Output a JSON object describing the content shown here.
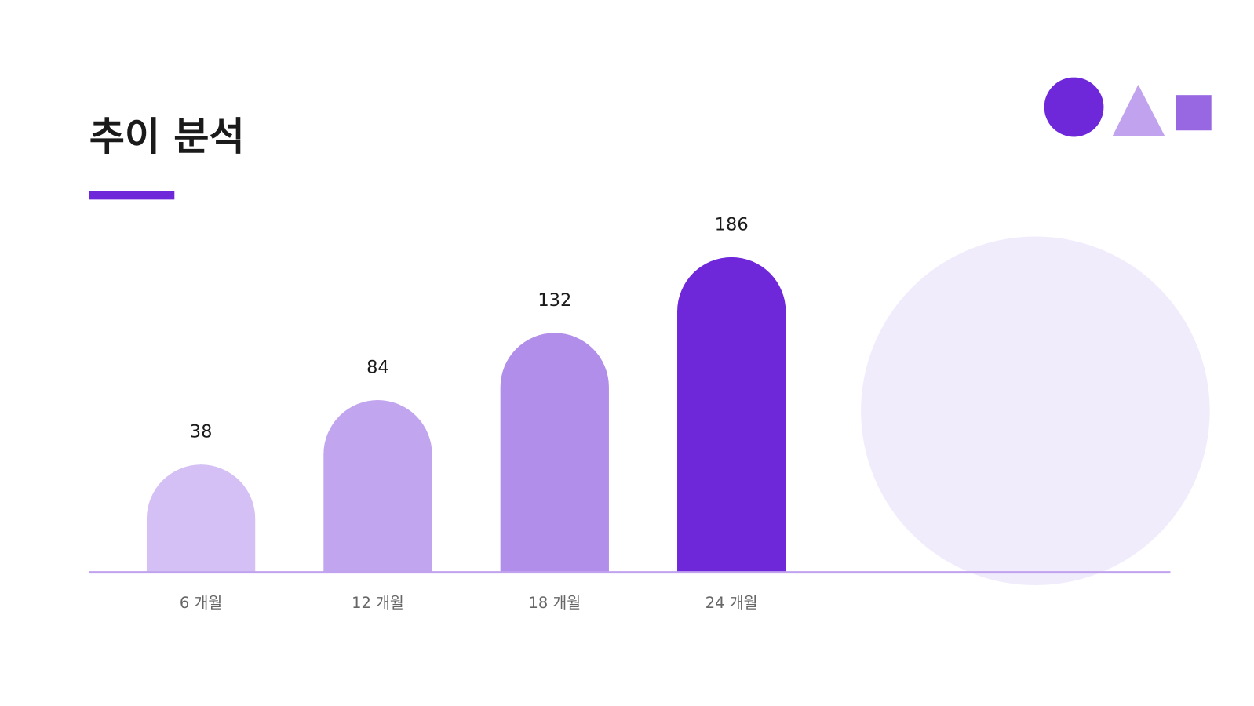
{
  "chart_data": {
    "type": "bar",
    "title": "추이 분석",
    "categories": [
      "6 개월",
      "12 개월",
      "18 개월",
      "24 개월"
    ],
    "values": [
      38,
      84,
      132,
      186
    ],
    "colors": [
      "#d4c0f4",
      "#c2a5ef",
      "#b08eea",
      "#6e28da"
    ]
  }
}
